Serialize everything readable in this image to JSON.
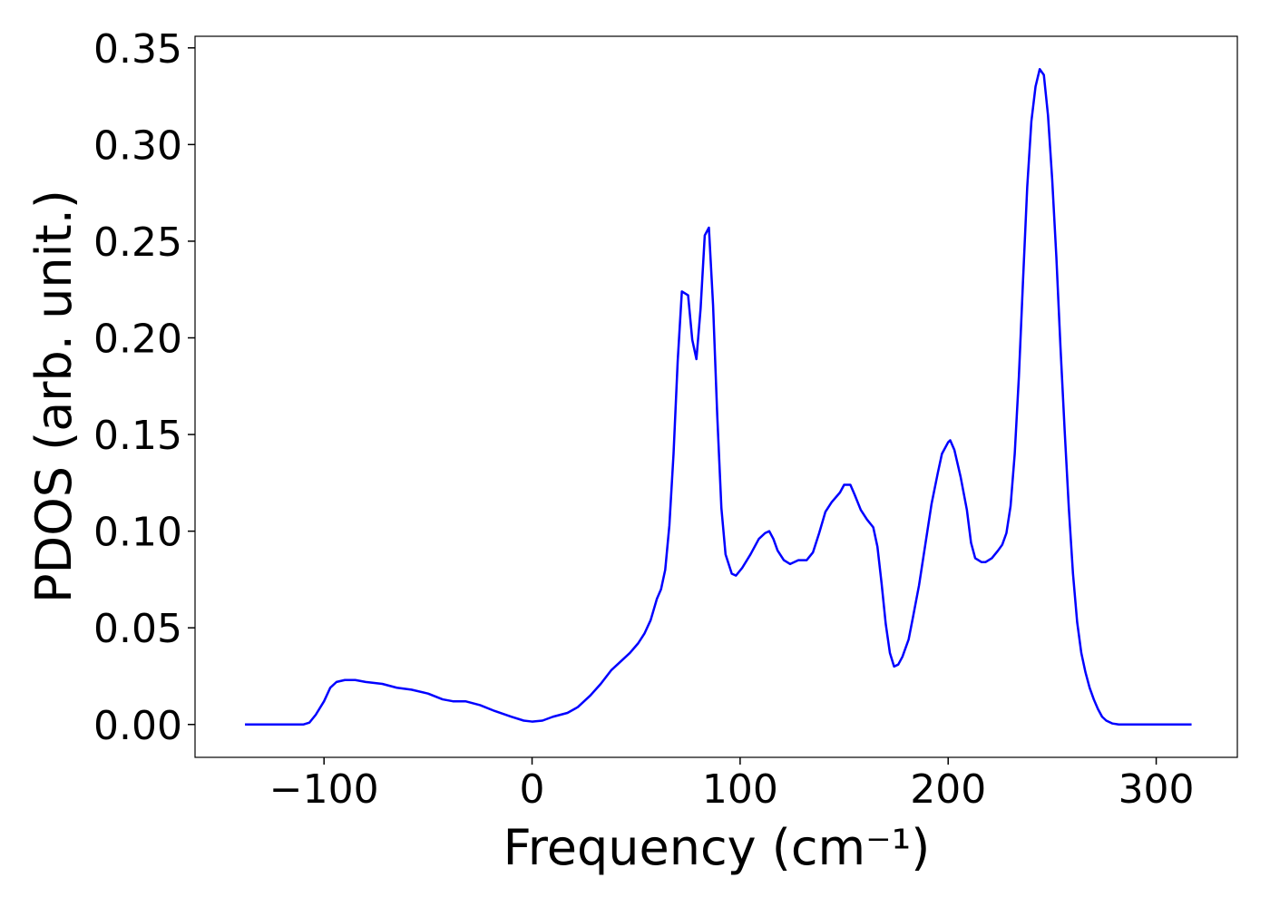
{
  "chart_data": {
    "type": "line",
    "xlabel": "Frequency (cm⁻¹)",
    "ylabel": "PDOS (arb. unit.)",
    "x": [
      -138,
      -110,
      -107,
      -104,
      -100,
      -97,
      -94,
      -90,
      -85,
      -80,
      -72,
      -65,
      -58,
      -50,
      -43,
      -38,
      -32,
      -25,
      -18,
      -10,
      -4,
      0,
      5,
      10,
      17,
      22,
      28,
      33,
      38,
      43,
      47,
      51,
      54,
      57,
      60,
      62,
      64,
      66,
      68,
      70,
      72,
      75,
      77,
      79,
      81,
      83,
      85,
      87,
      89,
      91,
      93,
      96,
      98,
      101,
      105,
      109,
      112,
      114,
      116,
      118,
      121,
      124,
      128,
      132,
      135,
      138,
      141,
      144,
      148,
      150,
      153,
      155,
      158,
      161,
      164,
      166,
      168,
      170,
      172,
      174,
      176,
      178,
      181,
      183,
      186,
      189,
      192,
      195,
      197,
      200,
      201,
      203,
      206,
      209,
      211,
      213,
      216,
      218,
      221,
      224,
      226,
      228,
      230,
      232,
      234,
      236,
      238,
      240,
      242,
      244,
      246,
      248,
      250,
      252,
      254,
      256,
      258,
      260,
      262,
      264,
      266,
      268,
      270,
      272,
      274,
      276,
      279,
      282,
      290,
      317
    ],
    "series": [
      {
        "color": "#0000ff",
        "values": [
          0,
          0,
          0.001,
          0.005,
          0.012,
          0.019,
          0.022,
          0.023,
          0.023,
          0.022,
          0.021,
          0.019,
          0.018,
          0.016,
          0.013,
          0.012,
          0.012,
          0.01,
          0.007,
          0.004,
          0.002,
          0.0015,
          0.002,
          0.004,
          0.006,
          0.009,
          0.015,
          0.021,
          0.028,
          0.033,
          0.037,
          0.042,
          0.047,
          0.054,
          0.065,
          0.07,
          0.08,
          0.103,
          0.14,
          0.188,
          0.224,
          0.222,
          0.199,
          0.189,
          0.215,
          0.253,
          0.257,
          0.217,
          0.16,
          0.112,
          0.088,
          0.078,
          0.077,
          0.081,
          0.088,
          0.096,
          0.099,
          0.1,
          0.096,
          0.09,
          0.085,
          0.083,
          0.085,
          0.085,
          0.089,
          0.099,
          0.11,
          0.115,
          0.12,
          0.124,
          0.124,
          0.119,
          0.111,
          0.106,
          0.102,
          0.092,
          0.073,
          0.052,
          0.037,
          0.03,
          0.031,
          0.035,
          0.044,
          0.055,
          0.072,
          0.093,
          0.114,
          0.13,
          0.14,
          0.146,
          0.147,
          0.142,
          0.128,
          0.111,
          0.094,
          0.086,
          0.084,
          0.084,
          0.086,
          0.09,
          0.093,
          0.099,
          0.113,
          0.14,
          0.18,
          0.23,
          0.278,
          0.312,
          0.33,
          0.339,
          0.336,
          0.315,
          0.282,
          0.242,
          0.195,
          0.152,
          0.112,
          0.078,
          0.053,
          0.037,
          0.027,
          0.019,
          0.013,
          0.008,
          0.004,
          0.002,
          0.0005,
          0,
          0,
          0
        ]
      }
    ],
    "xlim": [
      -162,
      339
    ],
    "xticks": [
      {
        "value": -100,
        "label": "−100"
      },
      0,
      100,
      200,
      300
    ],
    "ylim": [
      -0.017,
      0.356
    ],
    "yticks": [
      {
        "value": 0,
        "label": "0.00"
      },
      {
        "value": 0.05,
        "label": "0.05"
      },
      {
        "value": 0.1,
        "label": "0.10"
      },
      {
        "value": 0.15,
        "label": "0.15"
      },
      {
        "value": 0.2,
        "label": "0.20"
      },
      {
        "value": 0.25,
        "label": "0.25"
      },
      {
        "value": 0.3,
        "label": "0.30"
      },
      {
        "value": 0.35,
        "label": "0.35"
      }
    ],
    "grid": false
  }
}
